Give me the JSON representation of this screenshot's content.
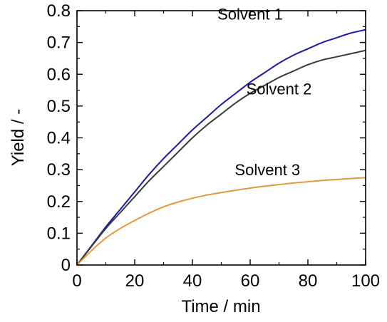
{
  "chart_data": {
    "type": "line",
    "xlabel": "Time / min",
    "ylabel": "Yield / -",
    "xlim": [
      0,
      100
    ],
    "ylim": [
      0,
      0.8
    ],
    "x_ticks": [
      0,
      20,
      40,
      60,
      80,
      100
    ],
    "y_ticks": [
      0,
      0.1,
      0.2,
      0.3,
      0.4,
      0.5,
      0.6,
      0.7,
      0.8
    ],
    "x_tick_labels": [
      "0",
      "20",
      "40",
      "60",
      "80",
      "100"
    ],
    "y_tick_labels": [
      "0",
      "0.1",
      "0.2",
      "0.3",
      "0.4",
      "0.5",
      "0.6",
      "0.7",
      "0.8"
    ],
    "grid": false,
    "series": [
      {
        "name": "Solvent 1",
        "color": "#1a1aa6",
        "x": [
          0,
          5,
          10,
          15,
          20,
          25,
          30,
          35,
          40,
          45,
          50,
          55,
          60,
          65,
          70,
          75,
          80,
          85,
          90,
          95,
          100
        ],
        "values": [
          0,
          0.06,
          0.12,
          0.175,
          0.23,
          0.285,
          0.335,
          0.38,
          0.425,
          0.465,
          0.505,
          0.54,
          0.575,
          0.605,
          0.635,
          0.66,
          0.68,
          0.7,
          0.715,
          0.73,
          0.74
        ]
      },
      {
        "name": "Solvent 2",
        "color": "#3a3a3a",
        "x": [
          0,
          5,
          10,
          15,
          20,
          25,
          30,
          35,
          40,
          45,
          50,
          55,
          60,
          65,
          70,
          75,
          80,
          85,
          90,
          95,
          100
        ],
        "values": [
          0,
          0.058,
          0.115,
          0.165,
          0.215,
          0.265,
          0.31,
          0.355,
          0.4,
          0.44,
          0.475,
          0.51,
          0.54,
          0.565,
          0.59,
          0.61,
          0.63,
          0.645,
          0.655,
          0.665,
          0.675
        ]
      },
      {
        "name": "Solvent 3",
        "color": "#e3983a",
        "x": [
          0,
          5,
          10,
          15,
          20,
          25,
          30,
          35,
          40,
          45,
          50,
          55,
          60,
          65,
          70,
          75,
          80,
          85,
          90,
          95,
          100
        ],
        "values": [
          0,
          0.045,
          0.085,
          0.115,
          0.14,
          0.163,
          0.183,
          0.198,
          0.21,
          0.22,
          0.228,
          0.235,
          0.242,
          0.248,
          0.253,
          0.258,
          0.262,
          0.266,
          0.269,
          0.272,
          0.275
        ]
      }
    ]
  }
}
